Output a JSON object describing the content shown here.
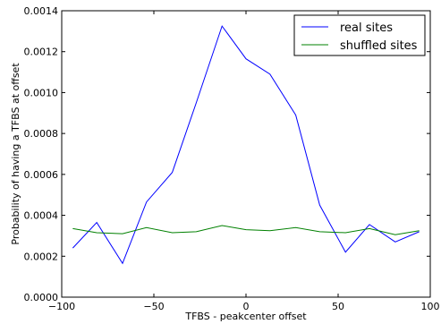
{
  "chart_data": {
    "type": "line",
    "title": "",
    "xlabel": "TFBS - peakcenter offset",
    "ylabel": "Probability of having a TFBS at offset",
    "xlim": [
      -100,
      100
    ],
    "ylim": [
      0,
      0.0014
    ],
    "xticks": [
      -100,
      -50,
      0,
      50,
      100
    ],
    "xtick_labels": [
      "−100",
      "−50",
      "0",
      "50",
      "100"
    ],
    "yticks": [
      0,
      0.0002,
      0.0004,
      0.0006,
      0.0008,
      0.001,
      0.0012,
      0.0014
    ],
    "ytick_labels": [
      "0.0000",
      "0.0002",
      "0.0004",
      "0.0006",
      "0.0008",
      "0.0010",
      "0.0012",
      "0.0014"
    ],
    "grid": false,
    "legend_position": "top-right",
    "series": [
      {
        "name": "real sites",
        "color": "#0000ff",
        "x": [
          -94,
          -81,
          -67,
          -54,
          -40,
          -27,
          -13,
          0,
          13,
          27,
          40,
          54,
          67,
          81,
          94
        ],
        "values": [
          0.00024,
          0.000365,
          0.000165,
          0.000465,
          0.00061,
          0.00095,
          0.001325,
          0.001165,
          0.00109,
          0.00089,
          0.00045,
          0.00022,
          0.000355,
          0.00027,
          0.00032
        ]
      },
      {
        "name": "shuffled sites",
        "color": "#008000",
        "x": [
          -94,
          -81,
          -67,
          -54,
          -40,
          -27,
          -13,
          0,
          13,
          27,
          40,
          54,
          67,
          81,
          94
        ],
        "values": [
          0.000335,
          0.000315,
          0.00031,
          0.00034,
          0.000315,
          0.00032,
          0.00035,
          0.00033,
          0.000325,
          0.00034,
          0.00032,
          0.000315,
          0.000335,
          0.000305,
          0.000325
        ]
      }
    ]
  }
}
